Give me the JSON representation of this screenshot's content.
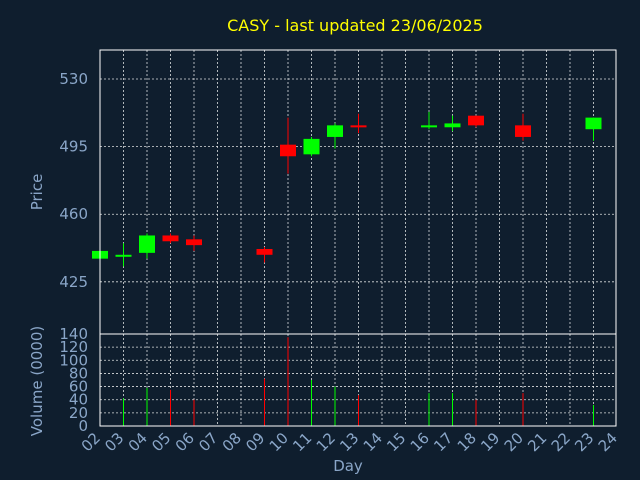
{
  "chart_data": {
    "type": "candlestick",
    "title": "CASY - last updated 23/06/2025",
    "colors": {
      "background": "#0f1e2e",
      "up": "#00ff00",
      "down": "#ff0000",
      "title": "#ffff00",
      "axis_text": "#8aa6c8",
      "frame": "#ffffff"
    },
    "grid": true,
    "price_panel": {
      "ylabel": "Price",
      "ylim": [
        398,
        545
      ],
      "yticks": [
        425,
        460,
        495,
        530
      ]
    },
    "volume_panel": {
      "ylabel": "Volume (0000)",
      "ylim": [
        0,
        140
      ],
      "yticks": [
        0,
        20,
        40,
        60,
        80,
        100,
        120,
        140
      ]
    },
    "xaxis": {
      "xlabel": "Day",
      "ticks": [
        "02",
        "03",
        "04",
        "05",
        "06",
        "07",
        "08",
        "09",
        "10",
        "11",
        "12",
        "13",
        "14",
        "15",
        "16",
        "17",
        "18",
        "19",
        "20",
        "21",
        "22",
        "23",
        "24"
      ]
    },
    "candles": [
      {
        "day": "02",
        "open": 437,
        "close": 441,
        "high": 441,
        "low": 437,
        "volume": 0
      },
      {
        "day": "03",
        "open": 438,
        "close": 439,
        "high": 445,
        "low": 433,
        "volume": 42
      },
      {
        "day": "04",
        "open": 440,
        "close": 449,
        "high": 450,
        "low": 437,
        "volume": 58
      },
      {
        "day": "05",
        "open": 449,
        "close": 446,
        "high": 450,
        "low": 445,
        "volume": 55
      },
      {
        "day": "06",
        "open": 447,
        "close": 444,
        "high": 449,
        "low": 441,
        "volume": 40
      },
      {
        "day": "09",
        "open": 442,
        "close": 439,
        "high": 443,
        "low": 435,
        "volume": 72
      },
      {
        "day": "10",
        "open": 496,
        "close": 490,
        "high": 510,
        "low": 481,
        "volume": 135
      },
      {
        "day": "11",
        "open": 491,
        "close": 499,
        "high": 500,
        "low": 490,
        "volume": 70
      },
      {
        "day": "12",
        "open": 500,
        "close": 506,
        "high": 507,
        "low": 494,
        "volume": 60
      },
      {
        "day": "13",
        "open": 506,
        "close": 505,
        "high": 512,
        "low": 502,
        "volume": 47
      },
      {
        "day": "16",
        "open": 505,
        "close": 506,
        "high": 513,
        "low": 504,
        "volume": 50
      },
      {
        "day": "17",
        "open": 505,
        "close": 507,
        "high": 511,
        "low": 503,
        "volume": 50
      },
      {
        "day": "18",
        "open": 511,
        "close": 506,
        "high": 511,
        "low": 505,
        "volume": 40
      },
      {
        "day": "20",
        "open": 506,
        "close": 500,
        "high": 512,
        "low": 498,
        "volume": 50
      },
      {
        "day": "23",
        "open": 504,
        "close": 510,
        "high": 510,
        "low": 498,
        "volume": 32
      }
    ]
  }
}
